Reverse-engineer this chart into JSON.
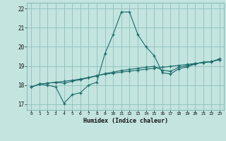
{
  "xlabel": "Humidex (Indice chaleur)",
  "background_color": "#c3e4df",
  "grid_color": "#8bbcb8",
  "line_color": "#1a6b6b",
  "xlim": [
    -0.5,
    23.5
  ],
  "ylim": [
    16.7,
    22.3
  ],
  "yticks": [
    17,
    18,
    19,
    20,
    21,
    22
  ],
  "xticks": [
    0,
    1,
    2,
    3,
    4,
    5,
    6,
    7,
    8,
    9,
    10,
    11,
    12,
    13,
    14,
    15,
    16,
    17,
    18,
    19,
    20,
    21,
    22,
    23
  ],
  "series1_x": [
    0,
    1,
    2,
    3,
    4,
    5,
    6,
    7,
    8,
    9,
    10,
    11,
    12,
    13,
    14,
    15,
    16,
    17,
    18,
    19,
    20,
    21,
    22,
    23
  ],
  "series1_y": [
    17.9,
    18.05,
    18.0,
    17.9,
    17.05,
    17.5,
    17.6,
    18.0,
    18.15,
    19.65,
    20.65,
    21.82,
    21.82,
    20.65,
    20.0,
    19.55,
    18.65,
    18.58,
    18.85,
    18.95,
    19.1,
    19.2,
    19.22,
    19.38
  ],
  "series2_x": [
    0,
    1,
    2,
    3,
    4,
    5,
    6,
    7,
    8,
    9,
    10,
    11,
    12,
    13,
    14,
    15,
    16,
    17,
    18,
    19,
    20,
    21,
    22,
    23
  ],
  "series2_y": [
    17.9,
    18.05,
    18.1,
    18.15,
    18.2,
    18.25,
    18.32,
    18.4,
    18.5,
    18.57,
    18.62,
    18.68,
    18.73,
    18.78,
    18.83,
    18.88,
    18.93,
    18.98,
    19.03,
    19.08,
    19.13,
    19.18,
    19.23,
    19.33
  ],
  "series3_x": [
    0,
    1,
    2,
    3,
    4,
    5,
    6,
    7,
    8,
    9,
    10,
    11,
    12,
    13,
    14,
    15,
    16,
    17,
    18,
    19,
    20,
    21,
    22,
    23
  ],
  "series3_y": [
    17.9,
    18.05,
    18.1,
    18.15,
    18.1,
    18.2,
    18.28,
    18.38,
    18.48,
    18.6,
    18.68,
    18.76,
    18.82,
    18.88,
    18.93,
    18.98,
    18.78,
    18.72,
    18.93,
    19.02,
    19.12,
    19.18,
    19.23,
    19.33
  ]
}
